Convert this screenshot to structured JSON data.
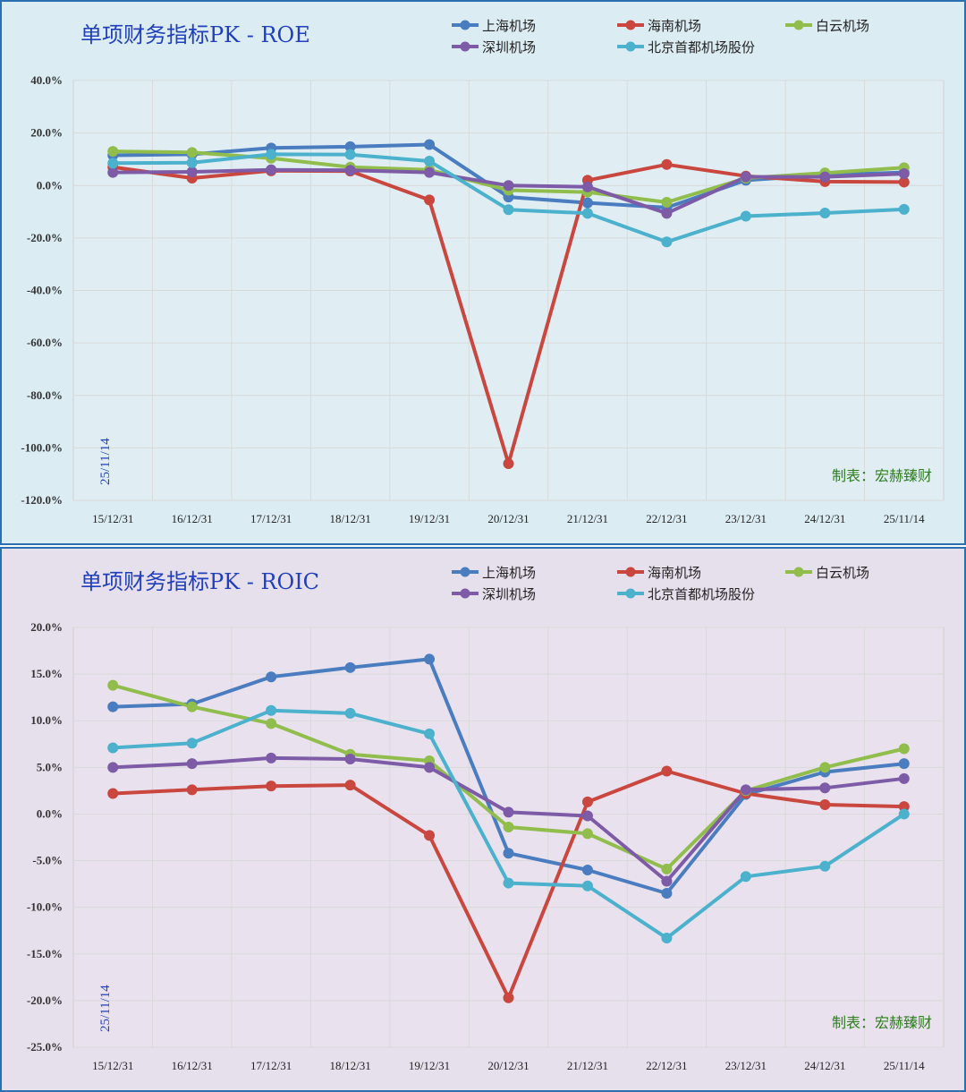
{
  "chart_data": [
    {
      "type": "line",
      "title": "单项财务指标PK - ROE",
      "categories": [
        "15/12/31",
        "16/12/31",
        "17/12/31",
        "18/12/31",
        "19/12/31",
        "20/12/31",
        "21/12/31",
        "22/12/31",
        "23/12/31",
        "24/12/31",
        "25/11/14"
      ],
      "ylim": [
        -120,
        40
      ],
      "yticks": [
        40,
        20,
        0,
        -20,
        -40,
        -60,
        -80,
        -100,
        -120
      ],
      "ytick_labels": [
        "40.0%",
        "20.0%",
        "0.0%",
        "-20.0%",
        "-40.0%",
        "-60.0%",
        "-80.0%",
        "-100.0%",
        "-120.0%"
      ],
      "grid": true,
      "date_label": "25/11/14",
      "credit": "制表：宏赫臻财",
      "series": [
        {
          "name": "上海机场",
          "color": "#4a7cc0",
          "values": [
            11.5,
            11.9,
            14.3,
            14.8,
            15.6,
            -4.4,
            -6.6,
            -8.4,
            2.0,
            4.0,
            5.0
          ]
        },
        {
          "name": "海南机场",
          "color": "#c9473f",
          "values": [
            7.0,
            2.8,
            5.6,
            5.5,
            -5.5,
            -106.0,
            2.0,
            8.0,
            3.6,
            1.5,
            1.3
          ]
        },
        {
          "name": "白云机场",
          "color": "#90bd4b",
          "values": [
            13.0,
            12.6,
            10.4,
            7.0,
            6.0,
            -1.8,
            -2.5,
            -6.4,
            2.8,
            4.8,
            6.8
          ]
        },
        {
          "name": "深圳机场",
          "color": "#7d5ba6",
          "values": [
            5.0,
            5.2,
            6.0,
            5.8,
            5.0,
            0.0,
            -0.5,
            -10.6,
            3.3,
            3.3,
            4.5
          ]
        },
        {
          "name": "北京首都机场股份",
          "color": "#4bb1cc",
          "values": [
            8.5,
            8.7,
            11.9,
            11.8,
            9.3,
            -9.2,
            -10.6,
            -21.5,
            -11.7,
            -10.5,
            -9.1
          ]
        }
      ]
    },
    {
      "type": "line",
      "title": "单项财务指标PK - ROIC",
      "categories": [
        "15/12/31",
        "16/12/31",
        "17/12/31",
        "18/12/31",
        "19/12/31",
        "20/12/31",
        "21/12/31",
        "22/12/31",
        "23/12/31",
        "24/12/31",
        "25/11/14"
      ],
      "ylim": [
        -25,
        20
      ],
      "yticks": [
        20,
        15,
        10,
        5,
        0,
        -5,
        -10,
        -15,
        -20,
        -25
      ],
      "ytick_labels": [
        "20.0%",
        "15.0%",
        "10.0%",
        "5.0%",
        "0.0%",
        "-5.0%",
        "-10.0%",
        "-15.0%",
        "-20.0%",
        "-25.0%"
      ],
      "grid": true,
      "date_label": "25/11/14",
      "credit": "制表：宏赫臻财",
      "series": [
        {
          "name": "上海机场",
          "color": "#4a7cc0",
          "values": [
            11.5,
            11.8,
            14.7,
            15.7,
            16.6,
            -4.2,
            -6.0,
            -8.5,
            2.1,
            4.5,
            5.4
          ]
        },
        {
          "name": "海南机场",
          "color": "#c9473f",
          "values": [
            2.2,
            2.6,
            3.0,
            3.1,
            -2.3,
            -19.7,
            1.3,
            4.6,
            2.2,
            1.0,
            0.8
          ]
        },
        {
          "name": "白云机场",
          "color": "#90bd4b",
          "values": [
            13.8,
            11.5,
            9.7,
            6.4,
            5.7,
            -1.4,
            -2.1,
            -5.9,
            2.5,
            5.0,
            7.0
          ]
        },
        {
          "name": "深圳机场",
          "color": "#7d5ba6",
          "values": [
            5.0,
            5.4,
            6.0,
            5.9,
            5.0,
            0.2,
            -0.2,
            -7.2,
            2.6,
            2.8,
            3.8
          ]
        },
        {
          "name": "北京首都机场股份",
          "color": "#4bb1cc",
          "values": [
            7.1,
            7.6,
            11.1,
            10.8,
            8.6,
            -7.4,
            -7.7,
            -13.3,
            -6.7,
            -5.6,
            0.0
          ]
        }
      ]
    }
  ]
}
